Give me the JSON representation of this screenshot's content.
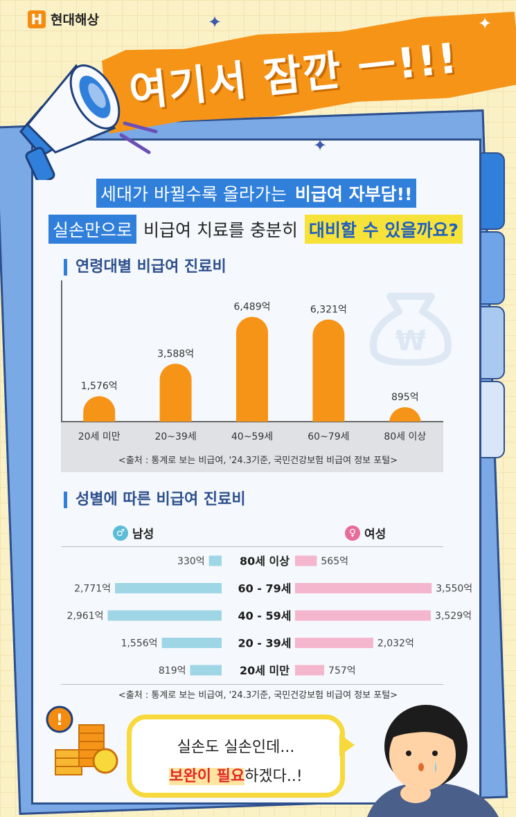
{
  "logo": {
    "mark": "H",
    "name": "현대해상"
  },
  "banner": {
    "title": "여기서 잠깐 ㅡ!!!"
  },
  "headline": {
    "line1_a": "세대가 바뀔수록 올라가는",
    "line1_b": "비급여 자부담!!",
    "line2_a": "실손만으로",
    "line2_b": "비급여 치료를 충분히",
    "line2_c": "대비할 수 있을까요?"
  },
  "section1": {
    "title": "연령대별 비급여 진료비"
  },
  "section2": {
    "title": "성별에 따른 비급여 진료비"
  },
  "colors": {
    "orange": "#f69418",
    "male": "#9ed6e6",
    "female": "#f4b6cc",
    "accent_blue": "#2f7fdb"
  },
  "chart_data": [
    {
      "type": "bar",
      "title": "연령대별 비급여 진료비",
      "categories": [
        "20세 미만",
        "20~39세",
        "40~59세",
        "60~79세",
        "80세 이상"
      ],
      "values": [
        1576,
        3588,
        6489,
        6321,
        895
      ],
      "value_labels": [
        "1,576억",
        "3,588억",
        "6,489억",
        "6,321억",
        "895억"
      ],
      "ylim": [
        0,
        7500
      ],
      "grid": false,
      "source": "<출처 : 통계로 보는 비급여, '24.3기준, 국민건강보험 비급여 정보 포털>"
    },
    {
      "type": "bar",
      "orientation": "horizontal-butterfly",
      "title": "성별에 따른 비급여 진료비",
      "categories": [
        "80세 이상",
        "60 - 79세",
        "40 - 59세",
        "20 - 39세",
        "20세 미만"
      ],
      "series": [
        {
          "name": "남성",
          "values": [
            330,
            2771,
            2961,
            1556,
            819
          ],
          "labels": [
            "330억",
            "2,771억",
            "2,961억",
            "1,556억",
            "819억"
          ]
        },
        {
          "name": "여성",
          "values": [
            565,
            3550,
            3529,
            2032,
            757
          ],
          "labels": [
            "565억",
            "3,550억",
            "3,529억",
            "2,032억",
            "757억"
          ]
        }
      ],
      "legend": "top",
      "source": "<출처 : 통계로 보는 비급여, '24.3기준, 국민건강보험 비급여 정보 포털>"
    }
  ],
  "legend": {
    "male_symbol": "♂",
    "male_label": "남성",
    "female_symbol": "♀",
    "female_label": "여성"
  },
  "bubble": {
    "line1": "실손도 실손인데...",
    "line2_highlight": "보완이 필요",
    "line2_rest": "하겠다..!"
  },
  "icons": [
    "megaphone-icon",
    "money-bag-icon",
    "exclamation-icon",
    "coins-icon",
    "sparkle-icon",
    "character-illustration"
  ]
}
